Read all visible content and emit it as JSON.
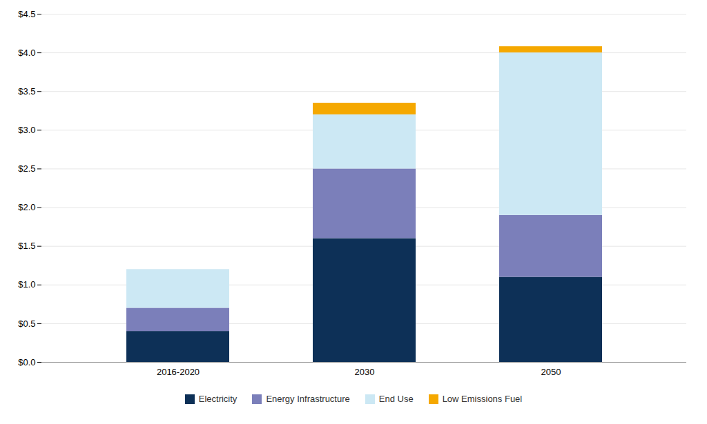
{
  "chart_data": {
    "type": "bar",
    "stacked": true,
    "categories": [
      "2016-2020",
      "2030",
      "2050"
    ],
    "series": [
      {
        "name": "Electricity",
        "color": "#0d3057",
        "values": [
          0.4,
          1.6,
          1.1
        ]
      },
      {
        "name": "Energy Infrastructure",
        "color": "#7b7fba",
        "values": [
          0.3,
          0.9,
          0.8
        ]
      },
      {
        "name": "End Use",
        "color": "#cce8f4",
        "values": [
          0.5,
          0.7,
          2.1
        ]
      },
      {
        "name": "Low Emissions Fuel",
        "color": "#f5a800",
        "values": [
          0.0,
          0.15,
          0.08
        ]
      }
    ],
    "ylim": [
      0,
      4.5
    ],
    "yticks": [
      {
        "value": 0.0,
        "label": "$0.0"
      },
      {
        "value": 0.5,
        "label": "$0.5"
      },
      {
        "value": 1.0,
        "label": "$1.0"
      },
      {
        "value": 1.5,
        "label": "$1.5"
      },
      {
        "value": 2.0,
        "label": "$2.0"
      },
      {
        "value": 2.5,
        "label": "$2.5"
      },
      {
        "value": 3.0,
        "label": "$3.0"
      },
      {
        "value": 3.5,
        "label": "$3.5"
      },
      {
        "value": 4.0,
        "label": "$4.0"
      },
      {
        "value": 4.5,
        "label": "$4.5"
      }
    ],
    "grid": true,
    "legend": "bottom"
  }
}
